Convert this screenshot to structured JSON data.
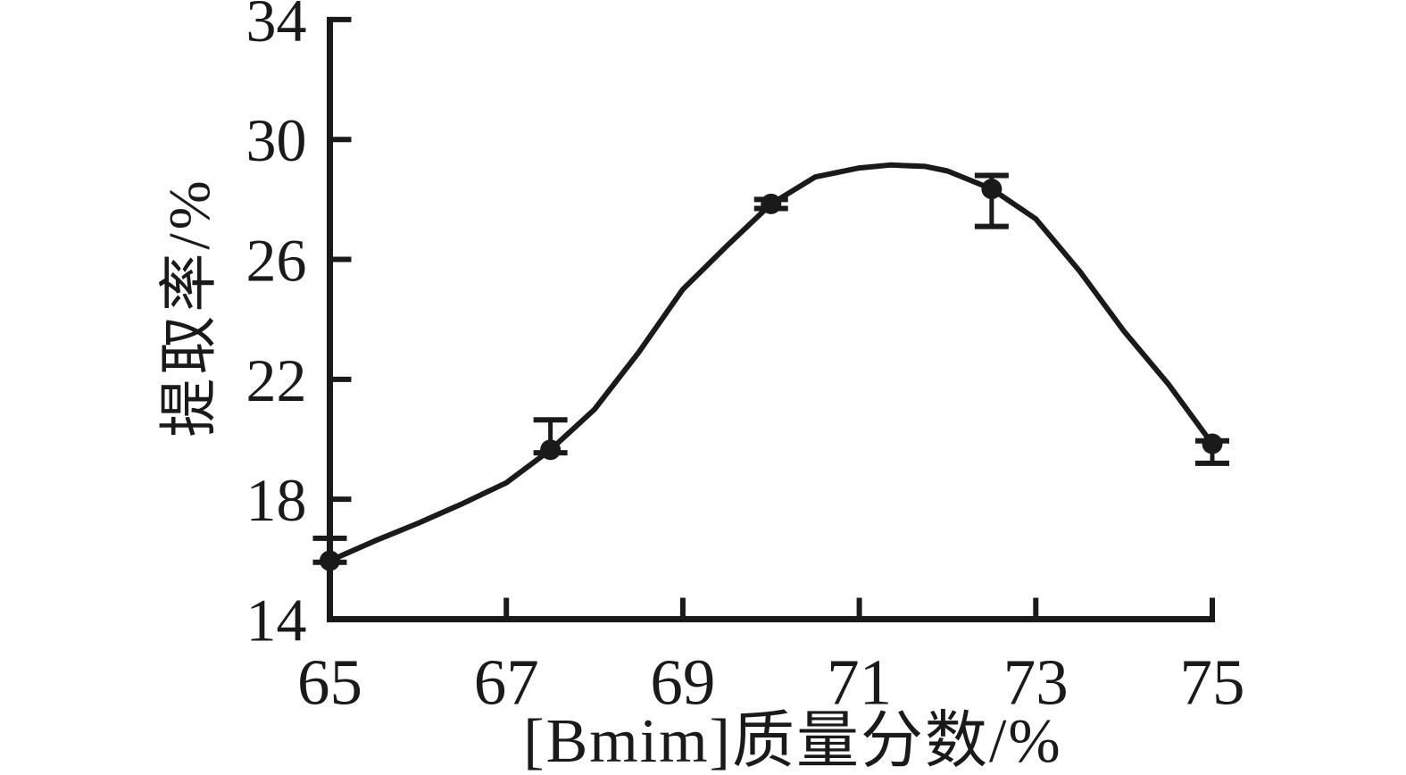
{
  "colors": {
    "ink": "#1a1a1a",
    "background": "#ffffff"
  },
  "chart_data": {
    "type": "line",
    "title": "",
    "xlabel": "[Bmim]质量分数/%",
    "ylabel": "提取率/%",
    "xlim": [
      65,
      75
    ],
    "ylim": [
      14,
      34
    ],
    "x_ticks": [
      65,
      67,
      69,
      71,
      73,
      75
    ],
    "y_ticks": [
      14,
      18,
      22,
      26,
      30,
      34
    ],
    "grid": false,
    "legend_position": "none",
    "series": [
      {
        "name": "提取率",
        "marker": "filled-circle",
        "line_style": "smooth",
        "color": "#1a1a1a",
        "x": [
          65,
          67.5,
          70,
          72.5,
          75
        ],
        "y": [
          15.95,
          19.65,
          27.85,
          28.35,
          19.85
        ],
        "err_up": [
          0.75,
          1.0,
          0.15,
          0.45,
          0.1
        ],
        "err_down": [
          0.05,
          0.1,
          0.15,
          1.25,
          0.65
        ]
      }
    ],
    "curve": [
      [
        65,
        15.95
      ],
      [
        65.5,
        16.6
      ],
      [
        66,
        17.2
      ],
      [
        66.5,
        17.85
      ],
      [
        67,
        18.55
      ],
      [
        67.5,
        19.65
      ],
      [
        68,
        21.0
      ],
      [
        68.5,
        22.9
      ],
      [
        69,
        25.0
      ],
      [
        69.5,
        26.45
      ],
      [
        70,
        27.85
      ],
      [
        70.5,
        28.75
      ],
      [
        71,
        29.05
      ],
      [
        71.35,
        29.15
      ],
      [
        71.75,
        29.1
      ],
      [
        72,
        28.95
      ],
      [
        72.5,
        28.35
      ],
      [
        73,
        27.35
      ],
      [
        73.5,
        25.6
      ],
      [
        74,
        23.6
      ],
      [
        74.5,
        21.85
      ],
      [
        75,
        19.85
      ]
    ]
  }
}
